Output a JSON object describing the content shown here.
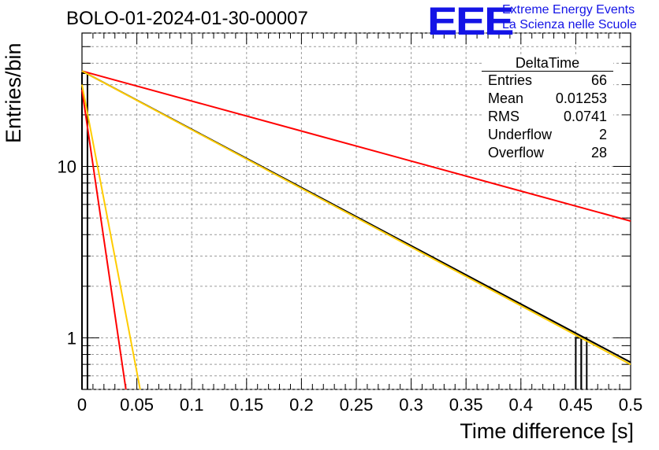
{
  "chart_data": {
    "type": "line",
    "title": "BOLO-01-2024-01-30-00007",
    "xlabel": "Time difference [s]",
    "ylabel": "Entries/bin",
    "xlim": [
      0,
      0.5
    ],
    "ylim": [
      0.5,
      60
    ],
    "yscale": "log",
    "grid": true,
    "x_ticks": [
      "0",
      "0.05",
      "0.1",
      "0.15",
      "0.2",
      "0.25",
      "0.3",
      "0.35",
      "0.4",
      "0.45",
      "0.5"
    ],
    "y_ticks": [
      "1",
      "10"
    ],
    "histogram": {
      "color": "#000000",
      "bins": [
        {
          "x": 0.0025,
          "y": 35
        },
        {
          "x": 0.4525,
          "y": 1
        },
        {
          "x": 0.4575,
          "y": 1
        }
      ]
    },
    "series": [
      {
        "color": "#ff0000",
        "x": [
          0,
          0.5
        ],
        "y": [
          36,
          4.8
        ]
      },
      {
        "color": "#000000",
        "x": [
          0,
          0.5
        ],
        "y": [
          36,
          0.72
        ]
      },
      {
        "color": "#ffcc00",
        "x": [
          0,
          0.5
        ],
        "y": [
          36,
          0.7
        ]
      },
      {
        "color": "#ff0000",
        "x": [
          0,
          0.04
        ],
        "y": [
          28,
          0.5
        ]
      },
      {
        "color": "#ffcc00",
        "x": [
          0,
          0.053
        ],
        "y": [
          30,
          0.5
        ]
      }
    ]
  },
  "stats": {
    "title": "DeltaTime",
    "rows": [
      {
        "label": "Entries",
        "value": "66"
      },
      {
        "label": "Mean",
        "value": "0.01253"
      },
      {
        "label": "RMS",
        "value": "0.0741"
      },
      {
        "label": "Underflow",
        "value": "2"
      },
      {
        "label": "Overflow",
        "value": "28"
      }
    ]
  },
  "logo": {
    "mark": "EEE",
    "line1": "Extreme Energy Events",
    "line2": "La Scienza nelle Scuole",
    "color": "#1414e6"
  }
}
